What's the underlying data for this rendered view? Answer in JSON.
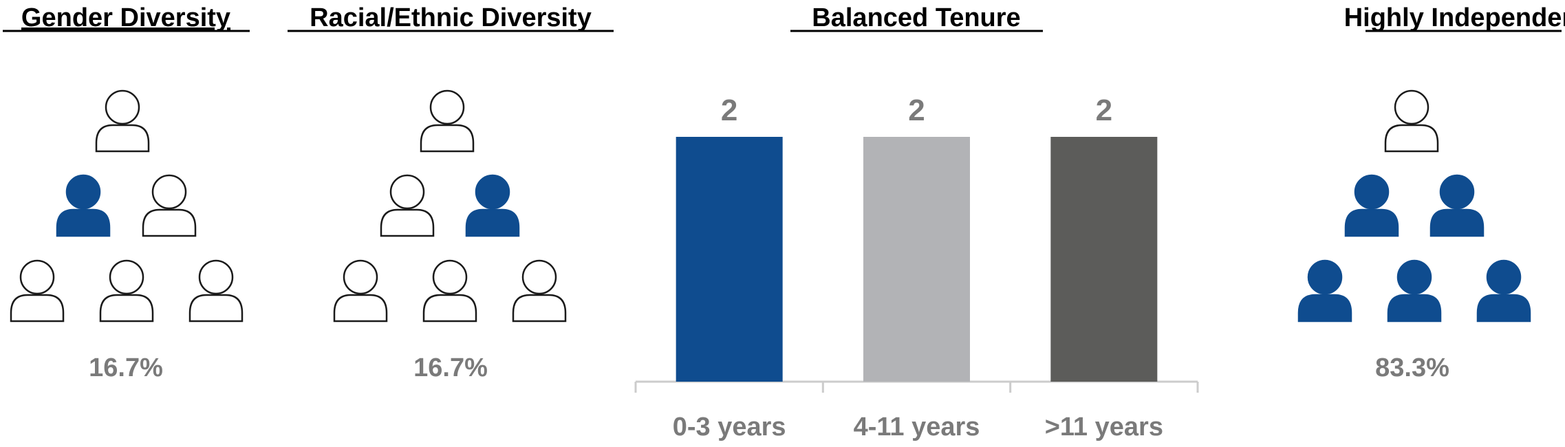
{
  "colors": {
    "accent_blue": "#0f4c8f",
    "light_gray": "#b2b3b6",
    "dark_gray": "#5c5c5a",
    "text_gray": "#7a7a7a",
    "outline": "#1a1a1a",
    "axis": "#cccccc"
  },
  "gender_diversity": {
    "title": "Gender Diversity",
    "percentage": "16.7%",
    "icons": [
      {
        "row": 1,
        "filled": false
      },
      {
        "row": 2,
        "filled": true
      },
      {
        "row": 2,
        "filled": false
      },
      {
        "row": 3,
        "filled": false
      },
      {
        "row": 3,
        "filled": false
      },
      {
        "row": 3,
        "filled": false
      }
    ]
  },
  "racial_diversity": {
    "title": "Racial/Ethnic Diversity",
    "percentage": "16.7%",
    "icons": [
      {
        "row": 1,
        "filled": false
      },
      {
        "row": 2,
        "filled": false
      },
      {
        "row": 2,
        "filled": true
      },
      {
        "row": 3,
        "filled": false
      },
      {
        "row": 3,
        "filled": false
      },
      {
        "row": 3,
        "filled": false
      }
    ]
  },
  "independence": {
    "title": "Highly Independent",
    "percentage": "83.3%",
    "icons": [
      {
        "row": 1,
        "filled": false
      },
      {
        "row": 2,
        "filled": true
      },
      {
        "row": 2,
        "filled": true
      },
      {
        "row": 3,
        "filled": true
      },
      {
        "row": 3,
        "filled": true
      },
      {
        "row": 3,
        "filled": true
      }
    ]
  },
  "chart_data": {
    "type": "bar",
    "title": "Balanced Tenure",
    "categories": [
      "0-3 years",
      "4-11 years",
      ">11 years"
    ],
    "values": [
      2,
      2,
      2
    ],
    "data_labels": [
      "2",
      "2",
      "2"
    ],
    "bar_colors": [
      "#0f4c8f",
      "#b2b3b6",
      "#5c5c5a"
    ],
    "xlabel": "",
    "ylabel": "",
    "ylim": [
      0,
      2
    ],
    "grid": false,
    "legend": "none"
  }
}
